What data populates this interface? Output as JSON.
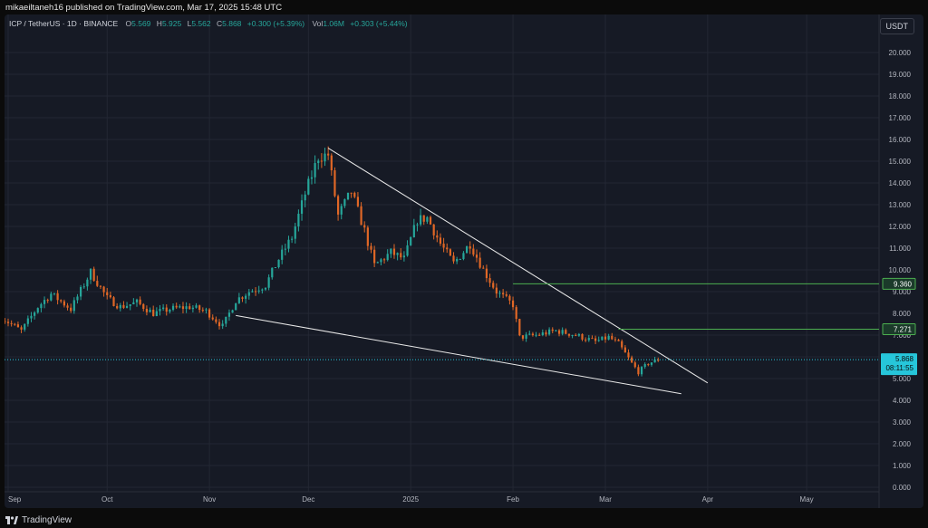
{
  "header": {
    "published": "mikaeiltaneh16 published on TradingView.com, Mar 17, 2025 15:48 UTC"
  },
  "legend": {
    "symbol": "ICP / TetherUS · 1D · BINANCE",
    "o_label": "O",
    "o": "5.569",
    "h_label": "H",
    "h": "5.925",
    "l_label": "L",
    "l": "5.562",
    "c_label": "C",
    "c": "5.868",
    "change": "+0.300 (+5.39%)",
    "vol_label": "Vol",
    "vol": "1.06M",
    "vol_change": "+0.303 (+5.44%)"
  },
  "toolbar": {
    "currency": "USDT"
  },
  "footer": {
    "brand": "TradingView",
    "logo_icon": "tradingview-logo-icon"
  },
  "colors": {
    "up": "#26a69a",
    "down": "#e06726",
    "trendline": "#e8e8e8",
    "level_line": "#4caf50",
    "price_line": "#26c6da",
    "grid": "#232733"
  },
  "chart_data": {
    "type": "candlestick",
    "title": "",
    "xlabel": "",
    "ylabel": "",
    "x_ticks": [
      "Sep",
      "Oct",
      "Nov",
      "Dec",
      "2025",
      "Feb",
      "Mar",
      "Apr",
      "May"
    ],
    "y_ticks": [
      "20.000",
      "19.000",
      "18.000",
      "17.000",
      "16.000",
      "15.000",
      "14.000",
      "13.000",
      "12.000",
      "11.000",
      "10.000",
      "9.000",
      "8.000",
      "7.000",
      "6.000",
      "5.000",
      "4.000",
      "3.000",
      "2.000",
      "1.000",
      "0.000"
    ],
    "ylim": [
      0,
      20
    ],
    "grid": true,
    "price_series": [
      [
        "2024-08-30",
        7.8
      ],
      [
        "2024-09-05",
        7.2
      ],
      [
        "2024-09-10",
        8.3
      ],
      [
        "2024-09-14",
        8.9
      ],
      [
        "2024-09-20",
        8.2
      ],
      [
        "2024-09-26",
        9.9
      ],
      [
        "2024-10-01",
        8.7
      ],
      [
        "2024-10-05",
        8.3
      ],
      [
        "2024-10-10",
        8.5
      ],
      [
        "2024-10-15",
        8.0
      ],
      [
        "2024-10-20",
        8.2
      ],
      [
        "2024-10-26",
        8.3
      ],
      [
        "2024-10-31",
        8.1
      ],
      [
        "2024-11-05",
        7.4
      ],
      [
        "2024-11-09",
        8.6
      ],
      [
        "2024-11-13",
        9.0
      ],
      [
        "2024-11-18",
        9.3
      ],
      [
        "2024-11-22",
        10.5
      ],
      [
        "2024-11-26",
        11.5
      ],
      [
        "2024-11-30",
        13.5
      ],
      [
        "2024-12-04",
        15.2
      ],
      [
        "2024-12-07",
        15.3
      ],
      [
        "2024-12-10",
        12.5
      ],
      [
        "2024-12-14",
        13.6
      ],
      [
        "2024-12-18",
        11.8
      ],
      [
        "2024-12-21",
        10.2
      ],
      [
        "2024-12-26",
        10.8
      ],
      [
        "2024-12-30",
        10.5
      ],
      [
        "2025-01-03",
        12.3
      ],
      [
        "2025-01-06",
        12.4
      ],
      [
        "2025-01-10",
        11.2
      ],
      [
        "2025-01-14",
        10.3
      ],
      [
        "2025-01-19",
        11.2
      ],
      [
        "2025-01-23",
        10.0
      ],
      [
        "2025-01-27",
        9.0
      ],
      [
        "2025-02-01",
        8.4
      ],
      [
        "2025-02-03",
        6.9
      ],
      [
        "2025-02-08",
        7.0
      ],
      [
        "2025-02-14",
        7.2
      ],
      [
        "2025-02-20",
        7.0
      ],
      [
        "2025-02-26",
        6.7
      ],
      [
        "2025-03-02",
        6.9
      ],
      [
        "2025-03-05",
        6.6
      ],
      [
        "2025-03-09",
        5.7
      ],
      [
        "2025-03-11",
        5.3
      ],
      [
        "2025-03-14",
        5.7
      ],
      [
        "2025-03-17",
        5.868
      ]
    ],
    "trendlines": [
      {
        "name": "upper",
        "points": [
          [
            "2024-12-07",
            15.6
          ],
          [
            "2025-04-01",
            4.8
          ]
        ]
      },
      {
        "name": "lower",
        "points": [
          [
            "2024-11-09",
            7.9
          ],
          [
            "2025-03-24",
            4.3
          ]
        ]
      }
    ],
    "levels": [
      {
        "price": 9.36,
        "label": "9.360",
        "from": "2025-02-01"
      },
      {
        "price": 7.271,
        "label": "7.271",
        "from": "2025-03-05"
      }
    ],
    "last_price": {
      "price": 5.868,
      "label": "5.868",
      "countdown": "08:11:55"
    }
  }
}
